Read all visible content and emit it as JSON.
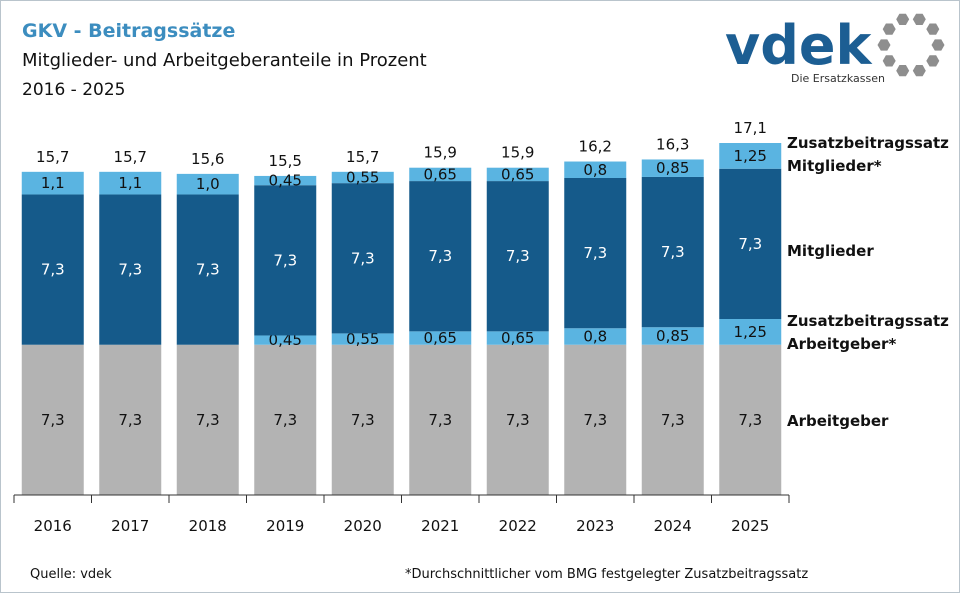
{
  "header": {
    "title": "GKV - Beitragssätze",
    "subtitle": "Mitglieder- und Arbeitgeberanteile in Prozent",
    "range": "2016 - 2025"
  },
  "logo": {
    "wordmark": "vdek",
    "tagline": "Die Ersatzkassen"
  },
  "footer": {
    "source": "Quelle: vdek",
    "note": "*Durchschnittlicher vom BMG festgelegter Zusatzbeitragssatz"
  },
  "colors": {
    "arbeitgeber": "#b3b3b3",
    "zusatz": "#5ab4e1",
    "mitglieder": "#155a8a",
    "title": "#3c8dbf"
  },
  "chart_data": {
    "type": "bar",
    "stacked": true,
    "categories": [
      "2016",
      "2017",
      "2018",
      "2019",
      "2020",
      "2021",
      "2022",
      "2023",
      "2024",
      "2025"
    ],
    "series": [
      {
        "name": "Arbeitgeber",
        "values": [
          7.3,
          7.3,
          7.3,
          7.3,
          7.3,
          7.3,
          7.3,
          7.3,
          7.3,
          7.3
        ],
        "labels": [
          "7,3",
          "7,3",
          "7,3",
          "7,3",
          "7,3",
          "7,3",
          "7,3",
          "7,3",
          "7,3",
          "7,3"
        ]
      },
      {
        "name": "Zusatzbeitragssatz Arbeitgeber*",
        "values": [
          0,
          0,
          0,
          0.45,
          0.55,
          0.65,
          0.65,
          0.8,
          0.85,
          1.25
        ],
        "labels": [
          "",
          "",
          "",
          "0,45",
          "0,55",
          "0,65",
          "0,65",
          "0,8",
          "0,85",
          "1,25"
        ]
      },
      {
        "name": "Mitglieder",
        "values": [
          7.3,
          7.3,
          7.3,
          7.3,
          7.3,
          7.3,
          7.3,
          7.3,
          7.3,
          7.3
        ],
        "labels": [
          "7,3",
          "7,3",
          "7,3",
          "7,3",
          "7,3",
          "7,3",
          "7,3",
          "7,3",
          "7,3",
          "7,3"
        ]
      },
      {
        "name": "Zusatzbeitragssatz Mitglieder*",
        "values": [
          1.1,
          1.1,
          1.0,
          0.45,
          0.55,
          0.65,
          0.65,
          0.8,
          0.85,
          1.25
        ],
        "labels": [
          "1,1",
          "1,1",
          "1,0",
          "0,45",
          "0,55",
          "0,65",
          "0,65",
          "0,8",
          "0,85",
          "1,25"
        ]
      }
    ],
    "totals": [
      15.7,
      15.7,
      15.6,
      15.5,
      15.7,
      15.9,
      15.9,
      16.2,
      16.3,
      17.1
    ],
    "total_labels": [
      "15,7",
      "15,7",
      "15,6",
      "15,5",
      "15,7",
      "15,9",
      "15,9",
      "16,2",
      "16,3",
      "17,1"
    ],
    "legend": [
      {
        "lines": [
          "Zusatzbeitragssatz",
          "Mitglieder*"
        ]
      },
      {
        "lines": [
          "Mitglieder"
        ]
      },
      {
        "lines": [
          "Zusatzbeitragssatz",
          "Arbeitgeber*"
        ]
      },
      {
        "lines": [
          "Arbeitgeber"
        ]
      }
    ],
    "ylim": [
      0,
      17.1
    ],
    "grid": false,
    "legend_position": "right"
  }
}
